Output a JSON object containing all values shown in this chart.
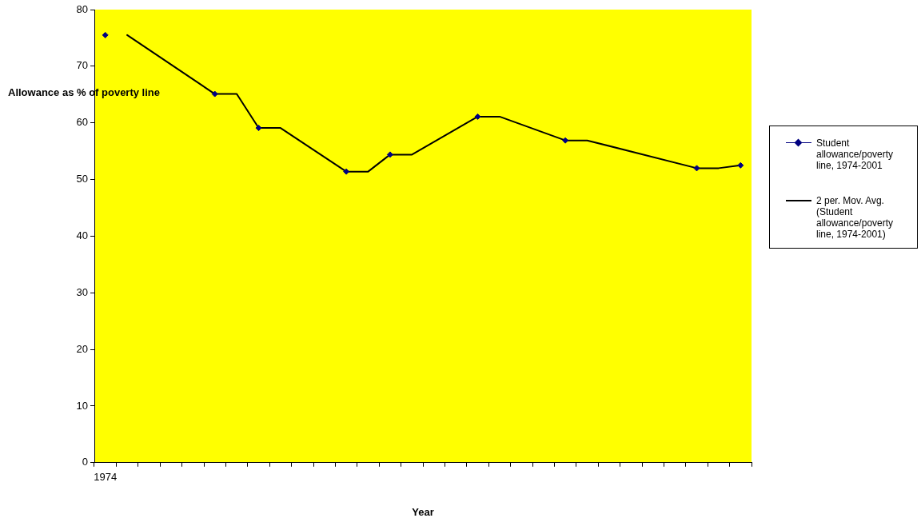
{
  "chart_data": {
    "type": "line",
    "xlabel": "Year",
    "ylabel": "Allowance as % of poverty line",
    "categories": [
      "1974",
      null,
      null,
      null,
      null,
      null,
      null,
      null,
      null,
      null,
      null,
      null,
      null,
      null,
      null,
      null,
      null,
      null,
      null,
      null,
      null,
      null,
      null,
      null,
      null,
      null,
      null,
      null,
      null,
      null
    ],
    "series": [
      {
        "name": "Student allowance/poverty line, 1974-2001",
        "type": "scatter",
        "color": "#000080",
        "values": [
          75.5,
          null,
          null,
          null,
          null,
          65.1,
          null,
          59.1,
          null,
          null,
          null,
          51.4,
          null,
          54.4,
          null,
          null,
          null,
          61.1,
          null,
          null,
          null,
          56.9,
          null,
          null,
          null,
          null,
          null,
          52.0,
          null,
          52.5
        ]
      },
      {
        "name": "2 per. Mov. Avg. (Student allowance/poverty line, 1974-2001)",
        "marker": "none",
        "color": "#000000",
        "values": [
          null,
          75.5,
          null,
          null,
          null,
          65.1,
          65.1,
          59.1,
          59.1,
          null,
          null,
          51.4,
          51.4,
          54.4,
          54.4,
          null,
          null,
          61.1,
          61.1,
          null,
          null,
          56.9,
          56.9,
          null,
          null,
          null,
          null,
          52.0,
          52.0,
          52.5
        ]
      }
    ],
    "ylim": [
      0,
      80
    ],
    "yticks": [
      0,
      10,
      20,
      30,
      40,
      50,
      60,
      70,
      80
    ],
    "grid": false,
    "legend": "right",
    "marker": "diamond",
    "line_style": "solid"
  }
}
